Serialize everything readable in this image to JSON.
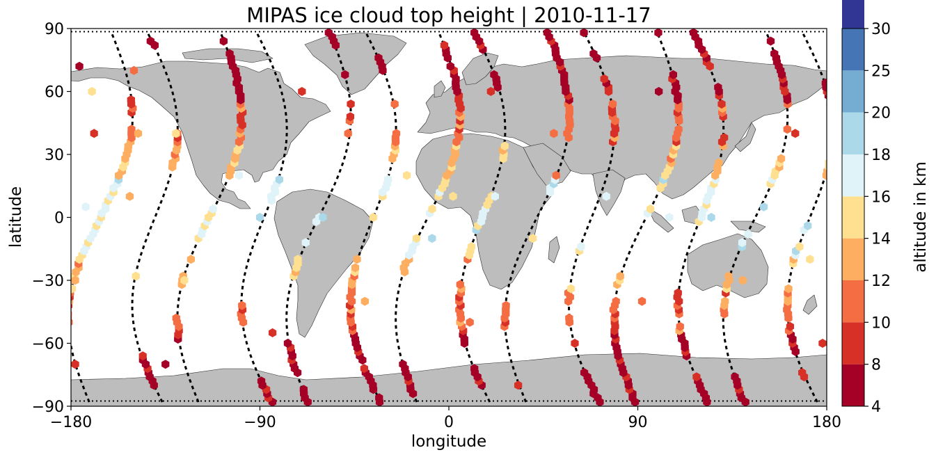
{
  "chart_data": {
    "type": "scatter",
    "title": "MIPAS ice cloud top height | 2010-11-17",
    "xlabel": "longitude",
    "ylabel": "latitude",
    "xlim": [
      -180,
      180
    ],
    "ylim": [
      -90,
      90
    ],
    "xticks": [
      -180,
      -90,
      0,
      90,
      180
    ],
    "yticks": [
      -90,
      -60,
      -30,
      0,
      30,
      60,
      90
    ],
    "xtick_labels": [
      "−180",
      "−90",
      "0",
      "90",
      "180"
    ],
    "ytick_labels": [
      "−90",
      "−60",
      "−30",
      "0",
      "30",
      "60",
      "90"
    ],
    "grid": false,
    "background_map": "world coastlines, land filled grey",
    "colorbar": {
      "label": "altitude in km",
      "boundaries": [
        4,
        8,
        10,
        12,
        14,
        16,
        18,
        20,
        25,
        30
      ],
      "tick_labels": [
        "4",
        "8",
        "10",
        "12",
        "14",
        "16",
        "18",
        "20",
        "25",
        "30"
      ],
      "colors": [
        "#a50026",
        "#d73027",
        "#f46d43",
        "#fdae61",
        "#fee090",
        "#e0f3f8",
        "#abd9e9",
        "#74add1",
        "#4575b4",
        "#313695"
      ]
    },
    "colors": {
      "land": "#bdbdbd",
      "ocean": "#ffffff",
      "track": "#000000",
      "coast": "#202020"
    },
    "orbit_tracks": {
      "description": "descending/ascending satellite ground tracks (sinusoid-like)",
      "count": 14,
      "equator_crossings_lon": [
        -166,
        -140,
        -114,
        -88,
        -62,
        -36,
        -10,
        16,
        42,
        68,
        94,
        120,
        146,
        172
      ],
      "amplitude_lon": 13
    },
    "cloud_points_sample": [
      {
        "lon": -176,
        "lat": 72,
        "alt": 6
      },
      {
        "lon": -170,
        "lat": 60,
        "alt": 14
      },
      {
        "lon": -169,
        "lat": 40,
        "alt": 8
      },
      {
        "lon": -173,
        "lat": 5,
        "alt": 16
      },
      {
        "lon": -178,
        "lat": -30,
        "alt": 12
      },
      {
        "lon": -178,
        "lat": -70,
        "alt": 8
      },
      {
        "lon": -150,
        "lat": 70,
        "alt": 10
      },
      {
        "lon": -148,
        "lat": 40,
        "alt": 12
      },
      {
        "lon": -152,
        "lat": 10,
        "alt": 12
      },
      {
        "lon": -130,
        "lat": 40,
        "alt": 14
      },
      {
        "lon": -126,
        "lat": -30,
        "alt": 14
      },
      {
        "lon": -135,
        "lat": -70,
        "alt": 6
      },
      {
        "lon": -100,
        "lat": 20,
        "alt": 16
      },
      {
        "lon": -90,
        "lat": 0,
        "alt": 18
      },
      {
        "lon": -84,
        "lat": -55,
        "alt": 8
      },
      {
        "lon": -70,
        "lat": 60,
        "alt": 8
      },
      {
        "lon": -60,
        "lat": 0,
        "alt": 18
      },
      {
        "lon": -48,
        "lat": 40,
        "alt": 10
      },
      {
        "lon": -40,
        "lat": -40,
        "alt": 12
      },
      {
        "lon": -20,
        "lat": 20,
        "alt": 14
      },
      {
        "lon": -8,
        "lat": -10,
        "alt": 18
      },
      {
        "lon": 2,
        "lat": 10,
        "alt": 14
      },
      {
        "lon": 10,
        "lat": -50,
        "alt": 10
      },
      {
        "lon": 20,
        "lat": 60,
        "alt": 8
      },
      {
        "lon": 22,
        "lat": 10,
        "alt": 16
      },
      {
        "lon": 40,
        "lat": -10,
        "alt": 14
      },
      {
        "lon": 50,
        "lat": 40,
        "alt": 10
      },
      {
        "lon": 60,
        "lat": -60,
        "alt": 8
      },
      {
        "lon": 75,
        "lat": 10,
        "alt": 16
      },
      {
        "lon": 92,
        "lat": -40,
        "alt": 10
      },
      {
        "lon": 100,
        "lat": 60,
        "alt": 6
      },
      {
        "lon": 105,
        "lat": 0,
        "alt": 16
      },
      {
        "lon": 125,
        "lat": 0,
        "alt": 18
      },
      {
        "lon": 140,
        "lat": -30,
        "alt": 12
      },
      {
        "lon": 150,
        "lat": 5,
        "alt": 18
      },
      {
        "lon": 165,
        "lat": 40,
        "alt": 8
      },
      {
        "lon": 172,
        "lat": -20,
        "alt": 14
      },
      {
        "lon": 178,
        "lat": -60,
        "alt": 8
      }
    ]
  }
}
